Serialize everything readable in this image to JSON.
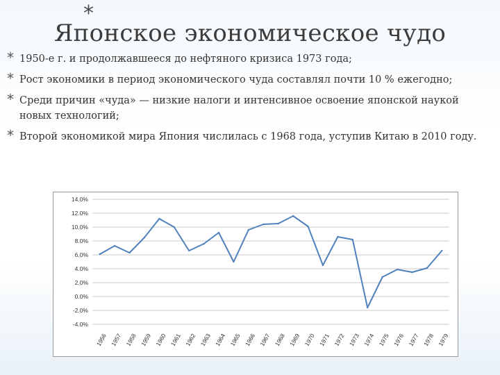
{
  "slide": {
    "title_bullet": "*",
    "title": "Японское экономическое чудо",
    "bullets": [
      {
        "star": "*",
        "text": "1950-е г. и продолжавшееся до нефтяного кризиса 1973 года;"
      },
      {
        "star": "*",
        "text": "Рост экономики в период экономического чуда составлял почти 10 % ежегодно;"
      },
      {
        "star": "*",
        "text": "Среди причин «чуда» — низкие налоги и интенсивное освоение японской наукой новых технологий;"
      },
      {
        "star": "*",
        "text": "Второй экономикой мира Япония числилась с 1968 года, уступив Китаю в 2010 году."
      }
    ]
  },
  "chart_data": {
    "type": "line",
    "title": "",
    "xlabel": "",
    "ylabel": "",
    "categories": [
      "1956",
      "1957",
      "1958",
      "1959",
      "1960",
      "1961",
      "1962",
      "1963",
      "1964",
      "1965",
      "1966",
      "1967",
      "1968",
      "1969",
      "1970",
      "1971",
      "1972",
      "1973",
      "1974",
      "1975",
      "1976",
      "1977",
      "1978",
      "1979"
    ],
    "series": [
      {
        "values": [
          6.1,
          7.3,
          6.3,
          8.5,
          11.2,
          10.0,
          6.6,
          7.6,
          9.2,
          5.0,
          9.6,
          10.4,
          10.5,
          11.6,
          10.1,
          4.5,
          8.6,
          8.2,
          -1.6,
          2.8,
          3.9,
          3.5,
          4.1,
          6.6
        ]
      }
    ],
    "ylim": [
      -4,
      14
    ],
    "y_ticks": [
      "-4.0%",
      "-2.0%",
      "0.0%",
      "2.0%",
      "4.0%",
      "6.0%",
      "8.0%",
      "10.0%",
      "12.0%",
      "14.0%"
    ],
    "grid": true,
    "legend": "none",
    "line_color": "#4f81bd",
    "grid_color": "#c8c8c8"
  }
}
